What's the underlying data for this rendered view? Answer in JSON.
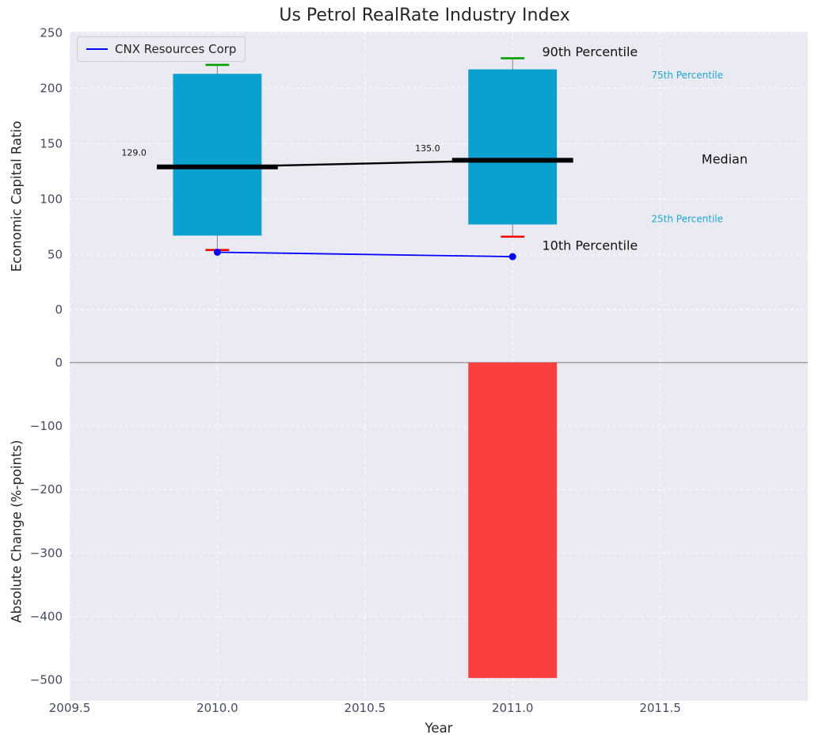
{
  "figure": {
    "plot_bg": "#eaeaf2",
    "grid_color": "#ffffff"
  },
  "chart_data": [
    {
      "type": "boxplot",
      "title": "Us Petrol RealRate Industry Index",
      "ylabel": "Economic Capital Ratio",
      "xlim": [
        2009.5,
        2012.0
      ],
      "ylim": [
        -47,
        251
      ],
      "bg": "#eaeaf2",
      "yticks": [
        {
          "v": 0,
          "label": "0"
        },
        {
          "v": 50,
          "label": "50"
        },
        {
          "v": 100,
          "label": "100"
        },
        {
          "v": 150,
          "label": "150"
        },
        {
          "v": 200,
          "label": "200"
        },
        {
          "v": 250,
          "label": "250"
        }
      ],
      "box_width": 0.3,
      "cap_width": 0.08,
      "median_seg_width": 0.41,
      "colors": {
        "box": "#0ba0ce",
        "cap_high": "#00a000",
        "cap_low": "#f00000",
        "median": "#000000",
        "whisker": "#808080"
      },
      "boxes": [
        {
          "x": 2010.0,
          "p10": 54,
          "p25": 67,
          "median": 129.0,
          "p75": 213,
          "p90": 221
        },
        {
          "x": 2011.0,
          "p10": 66,
          "p25": 77,
          "median": 135.0,
          "p75": 217,
          "p90": 227
        }
      ],
      "series": [
        {
          "name": "CNX Resources Corp",
          "color": "#0000ff",
          "x": [
            2010.0,
            2011.0
          ],
          "y": [
            52,
            48
          ]
        }
      ],
      "annotations": [
        {
          "text": "129.0",
          "x": 2009.76,
          "y": 142,
          "size": 11,
          "color": "#101010",
          "anchor": "end"
        },
        {
          "text": "135.0",
          "x": 2010.67,
          "y": 146,
          "size": 11,
          "color": "#101010",
          "anchor": "start"
        },
        {
          "text": "90th Percentile",
          "x": 2011.1,
          "y": 233,
          "size": 16,
          "color": "#111111",
          "anchor": "start"
        },
        {
          "text": "10th Percentile",
          "x": 2011.1,
          "y": 58,
          "size": 16,
          "color": "#111111",
          "anchor": "start"
        },
        {
          "text": "75th Percentile",
          "x": 2011.47,
          "y": 212,
          "size": 12,
          "color": "#1da6cf",
          "anchor": "start"
        },
        {
          "text": "25th Percentile",
          "x": 2011.47,
          "y": 82,
          "size": 12,
          "color": "#1da6cf",
          "anchor": "start"
        },
        {
          "text": "Median",
          "x": 2011.64,
          "y": 136,
          "size": 16,
          "color": "#111111",
          "anchor": "start"
        }
      ],
      "legend_position": "upper left"
    },
    {
      "type": "bar",
      "ylabel": "Absolute Change (%-points)",
      "xlabel": "Year",
      "xlim": [
        2009.5,
        2012.0
      ],
      "ylim": [
        -533,
        1
      ],
      "bg": "#eaeaf2",
      "yticks": [
        {
          "v": 0,
          "label": "0"
        },
        {
          "v": -100,
          "label": "−100"
        },
        {
          "v": -200,
          "label": "−200"
        },
        {
          "v": -300,
          "label": "−300"
        },
        {
          "v": -400,
          "label": "−400"
        },
        {
          "v": -500,
          "label": "−500"
        }
      ],
      "xticks": [
        {
          "v": 2009.5,
          "label": "2009.5"
        },
        {
          "v": 2010.0,
          "label": "2010.0"
        },
        {
          "v": 2010.5,
          "label": "2010.5"
        },
        {
          "v": 2011.0,
          "label": "2011.0"
        },
        {
          "v": 2011.5,
          "label": "2011.5"
        }
      ],
      "bars": [
        {
          "x": 2011.0,
          "value": -497
        }
      ],
      "bar_width": 0.3,
      "bar_color": "#fa3f3f",
      "zero_line_color": "#9a9a9a"
    }
  ]
}
